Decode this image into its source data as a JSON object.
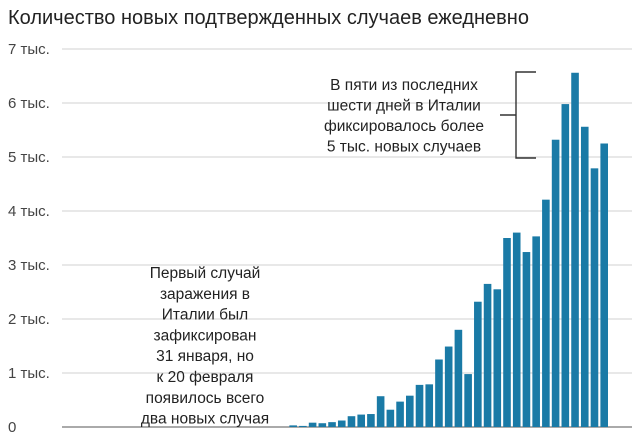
{
  "chart_data": {
    "type": "bar",
    "title": "Количество новых подтвержденных случаев ежедневно",
    "xlabel": "",
    "ylabel": "",
    "ylim": [
      0,
      7000
    ],
    "yticks": [
      0,
      1000,
      2000,
      3000,
      4000,
      5000,
      6000,
      7000
    ],
    "ytick_labels": [
      "0",
      "1 тыс.",
      "2 тыс.",
      "3 тыс.",
      "4 тыс.",
      "5 тыс.",
      "6 тыс.",
      "7 тыс."
    ],
    "grid": true,
    "bar_color": "#1a7aa6",
    "values": [
      0,
      0,
      0,
      0,
      0,
      0,
      0,
      0,
      0,
      0,
      0,
      0,
      0,
      0,
      0,
      0,
      0,
      0,
      0,
      0,
      0,
      0,
      0,
      0,
      0,
      0,
      0,
      0,
      0,
      0,
      30,
      20,
      80,
      70,
      90,
      120,
      200,
      230,
      240,
      570,
      320,
      470,
      580,
      780,
      790,
      1250,
      1490,
      1800,
      980,
      2320,
      2650,
      2550,
      3500,
      3600,
      3240,
      3530,
      4210,
      5320,
      5980,
      6560,
      5560,
      4790,
      5250
    ],
    "annotations": [
      {
        "lines": [
          "Первый случай",
          "заражения в",
          "Италии был",
          "зафиксирован",
          "31 января, но",
          "к 20 февраля",
          "появилось всего",
          "два новых случая"
        ]
      },
      {
        "lines": [
          "В пяти из последних",
          "шести дней в Италии",
          "фиксировалось более",
          "5 тыс. новых случаев"
        ]
      }
    ]
  }
}
